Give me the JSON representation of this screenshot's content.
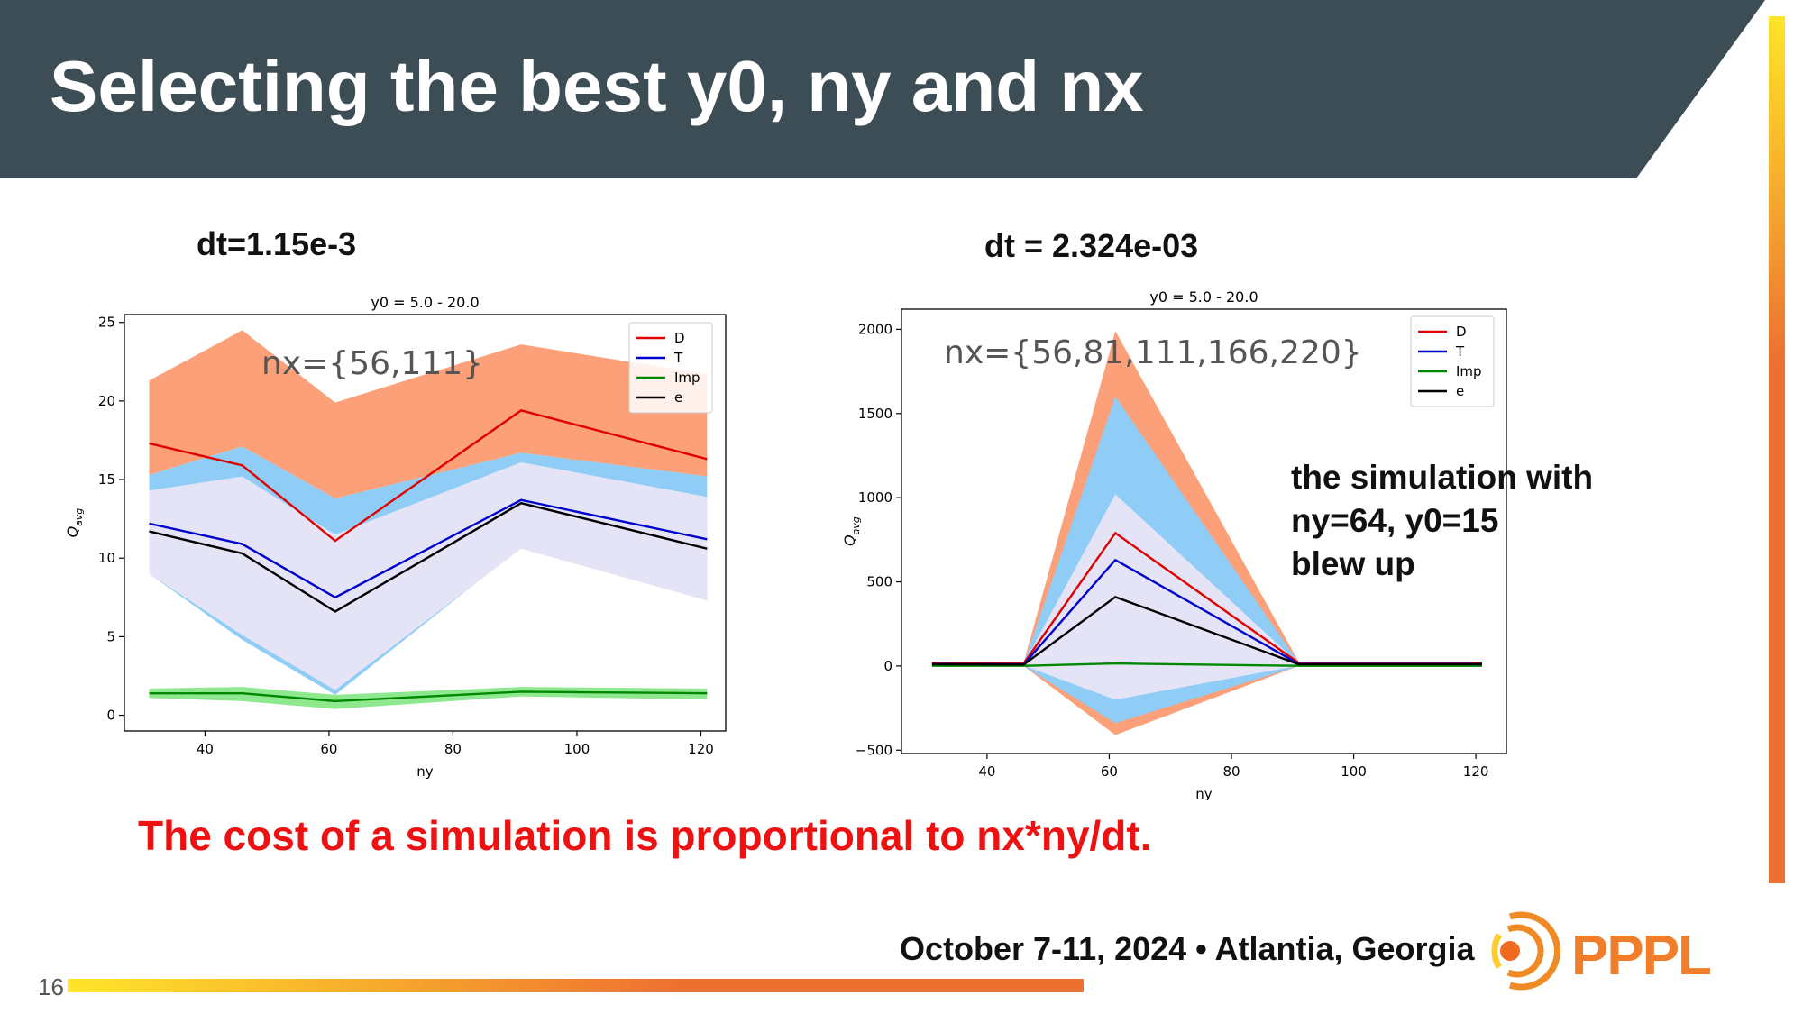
{
  "slide": {
    "title": "Selecting the best y0, ny and nx",
    "page_number": "16",
    "cost_statement": "The cost of a simulation is proportional to nx*ny/dt.",
    "event": "October 7-11, 2024 • Atlantia, Georgia",
    "logo_text": "PPPL"
  },
  "colors": {
    "header": "#3d4d55",
    "accent_yellow": "#ffe52a",
    "accent_orange": "#ee7030",
    "cost_text": "#ee1111"
  },
  "panels": [
    {
      "label": "dt=1.15e-3",
      "annotation": "nx={56,111}"
    },
    {
      "label": "dt = 2.324e-03",
      "annotation": "nx={56,81,111,166,220}",
      "note_lines": [
        "the simulation with",
        "ny=64, y0=15",
        "blew up"
      ]
    }
  ],
  "chart_data": [
    {
      "type": "line",
      "title": "y0 = 5.0 - 20.0",
      "xlabel": "ny",
      "ylabel": "Q_avg",
      "xlim": [
        27,
        124
      ],
      "ylim": [
        -1,
        25.5
      ],
      "xticks": [
        40,
        60,
        80,
        100,
        120
      ],
      "yticks": [
        0,
        5,
        10,
        15,
        20,
        25
      ],
      "legend_position": "top-right",
      "grid": false,
      "x": [
        31,
        46,
        61,
        91,
        121
      ],
      "series": [
        {
          "name": "D",
          "color": "#e00000",
          "values": [
            17.3,
            15.9,
            11.1,
            19.4,
            16.3
          ]
        },
        {
          "name": "T",
          "color": "#0000cc",
          "values": [
            12.2,
            10.9,
            7.5,
            13.7,
            11.2
          ]
        },
        {
          "name": "Imp",
          "color": "#008800",
          "values": [
            1.4,
            1.4,
            0.9,
            1.5,
            1.4
          ]
        },
        {
          "name": "e",
          "color": "#000000",
          "values": [
            11.7,
            10.3,
            6.6,
            13.5,
            10.6
          ]
        }
      ],
      "bands": [
        {
          "series": "D",
          "color": "#fca07a",
          "lower": [
            15.3,
            17.1,
            13.8,
            16.7,
            15.2
          ],
          "upper": [
            21.3,
            24.5,
            19.9,
            23.6,
            21.7
          ]
        },
        {
          "series": "T",
          "color": "#8fcdf7",
          "lower": [
            9.0,
            4.8,
            1.3,
            10.7,
            7.3
          ],
          "upper": [
            15.3,
            17.1,
            13.8,
            16.7,
            15.2
          ]
        },
        {
          "series": "e",
          "color": "#e4e4f6",
          "lower": [
            9.0,
            5.1,
            1.6,
            10.6,
            7.3
          ],
          "upper": [
            14.3,
            15.2,
            11.5,
            16.1,
            13.9
          ]
        },
        {
          "series": "Imp",
          "color": "#8ee88e",
          "lower": [
            1.1,
            0.9,
            0.4,
            1.2,
            1.0
          ],
          "upper": [
            1.7,
            1.8,
            1.3,
            1.8,
            1.7
          ]
        }
      ]
    },
    {
      "type": "line",
      "title": "y0 = 5.0 - 20.0",
      "xlabel": "ny",
      "ylabel": "Q_avg",
      "xlim": [
        26,
        125
      ],
      "ylim": [
        -520,
        2120
      ],
      "xticks": [
        40,
        60,
        80,
        100,
        120
      ],
      "yticks": [
        -500,
        0,
        500,
        1000,
        1500,
        2000
      ],
      "legend_position": "top-right",
      "grid": false,
      "x": [
        31,
        46,
        61,
        91,
        121
      ],
      "series": [
        {
          "name": "D",
          "color": "#e00000",
          "values": [
            18,
            15,
            790,
            18,
            18
          ]
        },
        {
          "name": "T",
          "color": "#0000cc",
          "values": [
            12,
            10,
            630,
            12,
            12
          ]
        },
        {
          "name": "Imp",
          "color": "#008800",
          "values": [
            1,
            1,
            15,
            1,
            1
          ]
        },
        {
          "name": "e",
          "color": "#000000",
          "values": [
            10,
            8,
            410,
            10,
            10
          ]
        }
      ],
      "bands": [
        {
          "series": "D",
          "color": "#fca07a",
          "lower": [
            0,
            0,
            -410,
            0,
            0
          ],
          "upper": [
            25,
            20,
            1990,
            25,
            25
          ]
        },
        {
          "series": "T",
          "color": "#8fcdf7",
          "lower": [
            0,
            0,
            -340,
            0,
            0
          ],
          "upper": [
            20,
            15,
            1600,
            20,
            20
          ]
        },
        {
          "series": "e",
          "color": "#e4e4f6",
          "lower": [
            2,
            2,
            -200,
            2,
            2
          ],
          "upper": [
            15,
            12,
            1020,
            15,
            15
          ]
        }
      ]
    }
  ]
}
